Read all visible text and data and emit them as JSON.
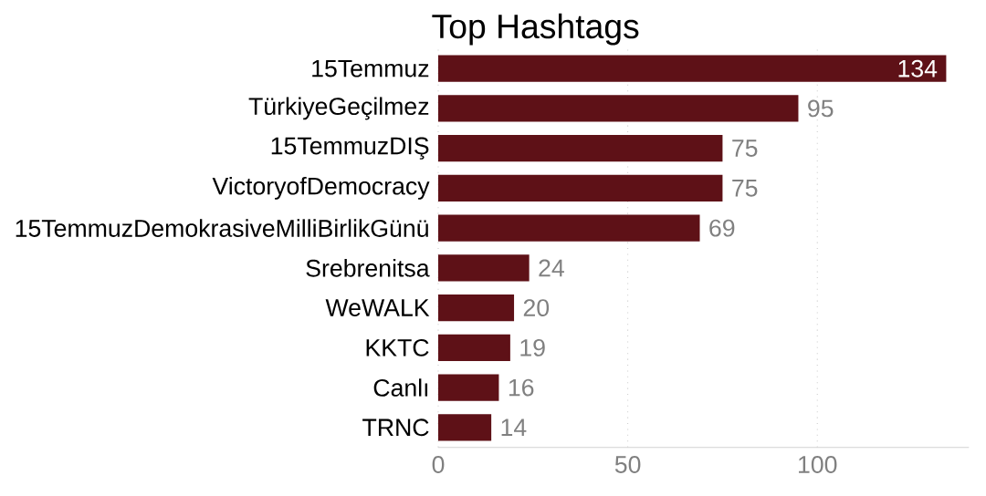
{
  "chart_data": {
    "type": "bar",
    "orientation": "horizontal",
    "title": "Top Hashtags",
    "categories": [
      "15Temmuz",
      "TürkiyeGeçilmez",
      "15TemmuzDIŞ",
      "VictoryofDemocracy",
      "15TemmuzDemokrasiveMilliBirlikGünü",
      "Srebrenitsa",
      "WeWALK",
      "KKTC",
      "Canlı",
      "TRNC"
    ],
    "values": [
      134,
      95,
      75,
      75,
      69,
      24,
      20,
      19,
      16,
      14
    ],
    "color": "#5e1117",
    "xlim": [
      0,
      140
    ],
    "xticks": [
      0,
      50,
      100
    ],
    "grid": "x",
    "data_labels": true
  }
}
